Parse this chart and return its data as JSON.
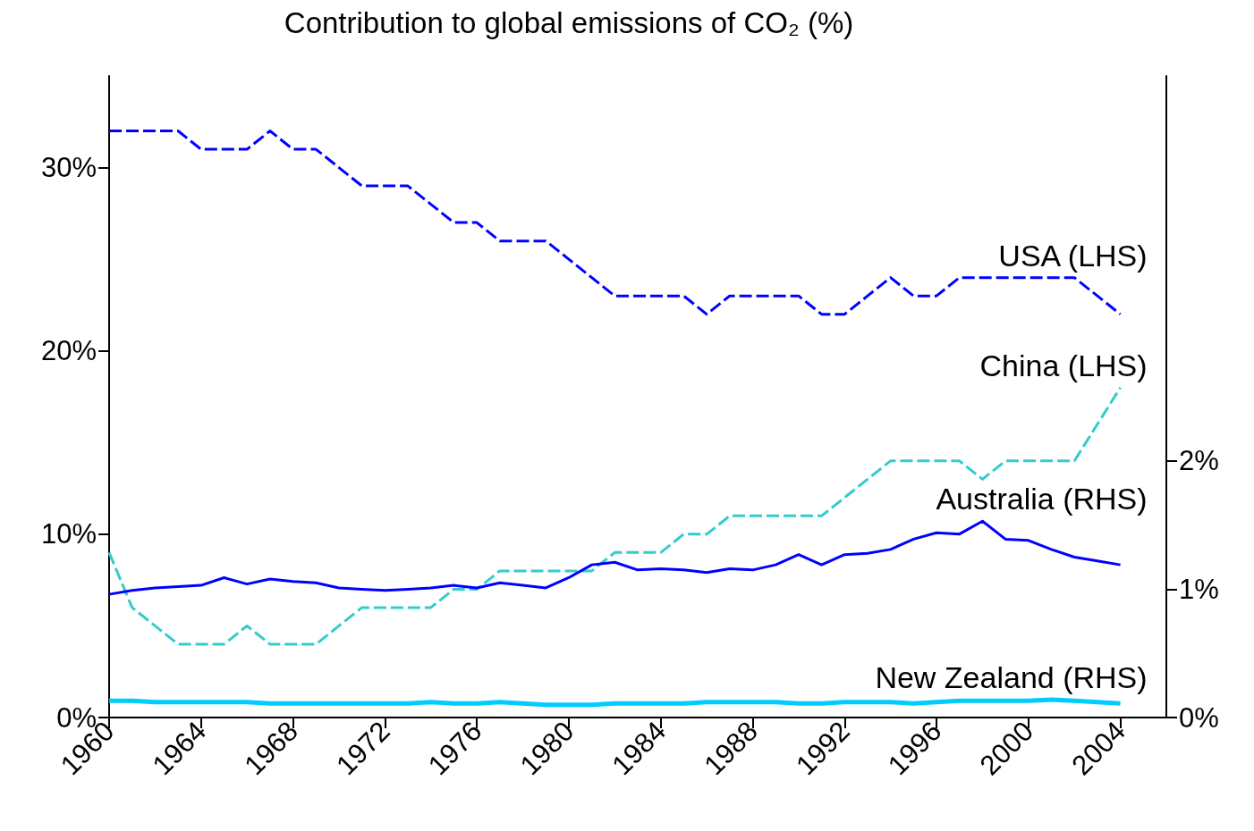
{
  "chart_data": {
    "type": "line",
    "title": "Contribution to global emissions of CO₂ (%)",
    "x": [
      1960,
      1961,
      1962,
      1963,
      1964,
      1965,
      1966,
      1967,
      1968,
      1969,
      1970,
      1971,
      1972,
      1973,
      1974,
      1975,
      1976,
      1977,
      1978,
      1979,
      1980,
      1981,
      1982,
      1983,
      1984,
      1985,
      1986,
      1987,
      1988,
      1989,
      1990,
      1991,
      1992,
      1993,
      1994,
      1995,
      1996,
      1997,
      1998,
      1999,
      2000,
      2001,
      2002,
      2003,
      2004
    ],
    "xlim": [
      1960,
      2006
    ],
    "xticks": [
      1960,
      1964,
      1968,
      1972,
      1976,
      1980,
      1984,
      1988,
      1992,
      1996,
      2000,
      2004
    ],
    "ylim": [
      0,
      35
    ],
    "yticks": [
      {
        "value": 0,
        "label": "0%"
      },
      {
        "value": 10,
        "label": "10%"
      },
      {
        "value": 20,
        "label": "20%"
      },
      {
        "value": 30,
        "label": "30%"
      }
    ],
    "y2lim": [
      0,
      5
    ],
    "y2ticks": [
      {
        "value": 0,
        "label": "0%"
      },
      {
        "value": 1,
        "label": "1%"
      },
      {
        "value": 2,
        "label": "2%"
      }
    ],
    "grid": false,
    "legend": false,
    "marker": "none",
    "series": [
      {
        "name": "USA (LHS)",
        "color": "#0000ff",
        "line_style": "dashed",
        "values": [
          32,
          32,
          32,
          32,
          31,
          31,
          31,
          32,
          31,
          31,
          30,
          29,
          29,
          29,
          28,
          27,
          27,
          26,
          26,
          26,
          25,
          24,
          23,
          23,
          23,
          23,
          22,
          23,
          23,
          23,
          23,
          22,
          22,
          23,
          24,
          23,
          23,
          24,
          24,
          24,
          24,
          24,
          24,
          23,
          22
        ]
      },
      {
        "name": "China (LHS)",
        "color": "#33cccc",
        "line_style": "dashed",
        "values": [
          9,
          6,
          5,
          4,
          4,
          4,
          5,
          4,
          4,
          4,
          5,
          6,
          6,
          6,
          6,
          7,
          7,
          8,
          8,
          8,
          8,
          8,
          9,
          9,
          9,
          10,
          10,
          11,
          11,
          11,
          11,
          11,
          12,
          13,
          14,
          14,
          14,
          14,
          13,
          14,
          14,
          14,
          14,
          16,
          18
        ]
      },
      {
        "name": "Australia (RHS)",
        "color": "#0000ff",
        "line_style": "solid",
        "axis": "y2",
        "values": [
          0.96,
          0.99,
          1.01,
          1.02,
          1.03,
          1.09,
          1.04,
          1.08,
          1.06,
          1.05,
          1.01,
          1.0,
          0.99,
          1.0,
          1.01,
          1.03,
          1.01,
          1.05,
          1.03,
          1.01,
          1.09,
          1.19,
          1.21,
          1.15,
          1.16,
          1.15,
          1.13,
          1.16,
          1.15,
          1.19,
          1.27,
          1.19,
          1.27,
          1.28,
          1.31,
          1.39,
          1.44,
          1.43,
          1.53,
          1.39,
          1.38,
          1.31,
          1.25,
          1.22,
          1.19
        ]
      },
      {
        "name": "New Zealand (RHS)",
        "color": "#00ccff",
        "line_style": "solid",
        "axis": "y2",
        "values": [
          0.13,
          0.13,
          0.12,
          0.12,
          0.12,
          0.12,
          0.12,
          0.11,
          0.11,
          0.11,
          0.11,
          0.11,
          0.11,
          0.11,
          0.12,
          0.11,
          0.11,
          0.12,
          0.11,
          0.1,
          0.1,
          0.1,
          0.11,
          0.11,
          0.11,
          0.11,
          0.12,
          0.12,
          0.12,
          0.12,
          0.11,
          0.11,
          0.12,
          0.12,
          0.12,
          0.11,
          0.12,
          0.13,
          0.13,
          0.13,
          0.13,
          0.14,
          0.13,
          0.12,
          0.11
        ]
      }
    ]
  }
}
